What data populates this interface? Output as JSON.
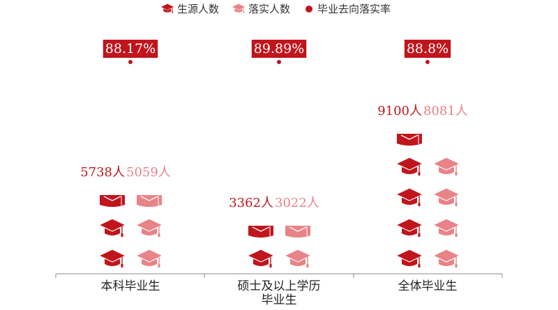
{
  "colors": {
    "generated": "#C0151C",
    "placed": "#E88387",
    "rate": "#C0151C",
    "axis": "#888888"
  },
  "chart_data": {
    "type": "bar",
    "categories": [
      "本科毕业生",
      "硕士及以上学历毕业生",
      "全体毕业生"
    ],
    "category_lines": [
      [
        "本科毕业生"
      ],
      [
        "硕士及以上学历",
        "毕业生"
      ],
      [
        "全体毕业生"
      ]
    ],
    "series": [
      {
        "name": "生源人数",
        "values": [
          5738,
          3362,
          9100
        ],
        "labels": [
          "5738人",
          "3362人",
          "9100人"
        ],
        "icon": "graduation-cap-icon"
      },
      {
        "name": "落实人数",
        "values": [
          5059,
          3022,
          8081
        ],
        "labels": [
          "5059人",
          "3022人",
          "8081人"
        ],
        "icon": "graduation-cap-icon"
      },
      {
        "name": "毕业去向落实率",
        "values": [
          88.17,
          89.89,
          88.8
        ],
        "labels": [
          "88.17%",
          "89.89%",
          "88.8%"
        ],
        "icon": "dot-marker-icon"
      }
    ],
    "legend": {
      "position": "top-center",
      "items": [
        "生源人数",
        "落实人数",
        "毕业去向落实率"
      ]
    },
    "unit_per_icon": 2000
  }
}
